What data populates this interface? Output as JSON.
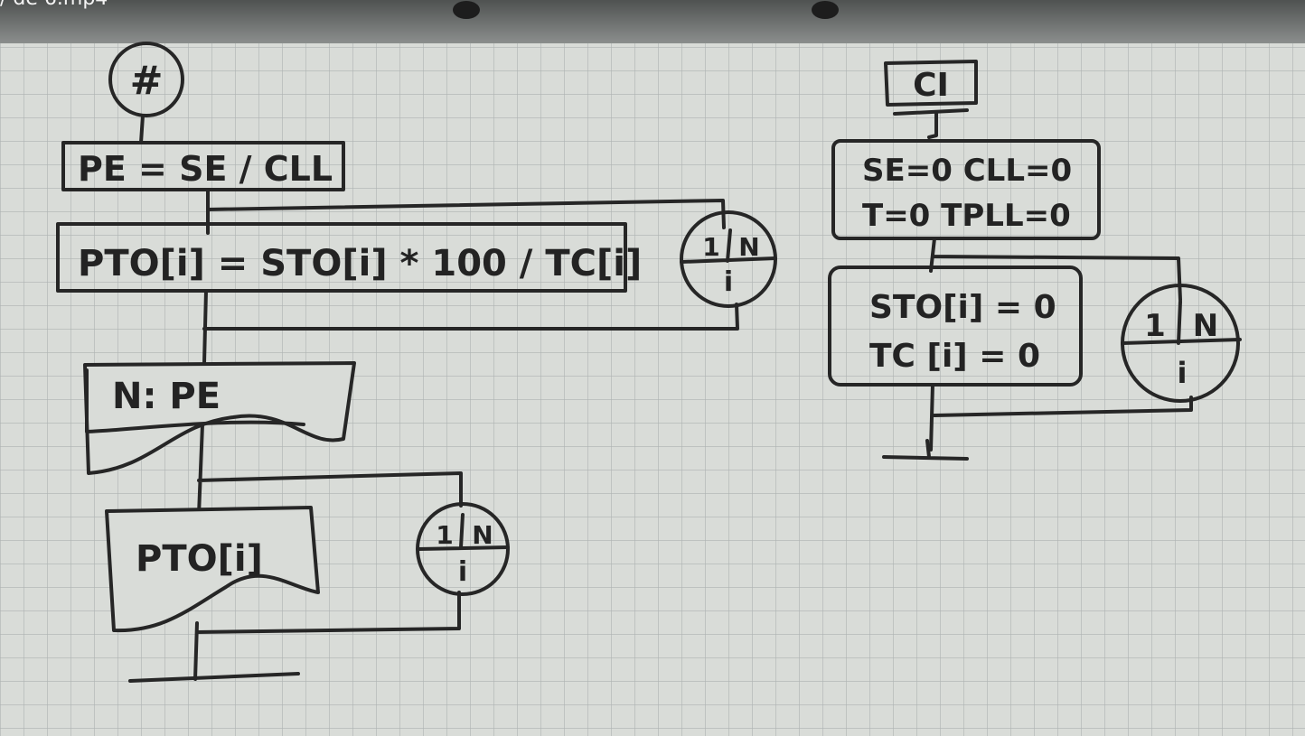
{
  "video": {
    "title_fragment": "/ de 6.mp4"
  },
  "left_flow": {
    "start_connector": "#",
    "process_pe": "PE = SE / CLL",
    "loop1_process": "PTO[i] = STO[i] * 100 / TC[i]",
    "loop1_left": "1",
    "loop1_right": "N",
    "loop1_var": "i",
    "output1": "N: PE",
    "loop2_output": "PTO[i]",
    "loop2_left": "1",
    "loop2_right": "N",
    "loop2_var": "i"
  },
  "right_flow": {
    "start_label": "CI",
    "init_line1": "SE=0  CLL=0",
    "init_line2": "T=0  TPLL=0",
    "loop_line1": "STO[i] = 0",
    "loop_line2": "TC [i] = 0",
    "loop_left": "1",
    "loop_right": "N",
    "loop_var": "i"
  },
  "colors": {
    "paper": "#d9dcd8",
    "grid": "#aeb3b2",
    "ink": "#262626",
    "top_bar": "#5b5e5d"
  }
}
